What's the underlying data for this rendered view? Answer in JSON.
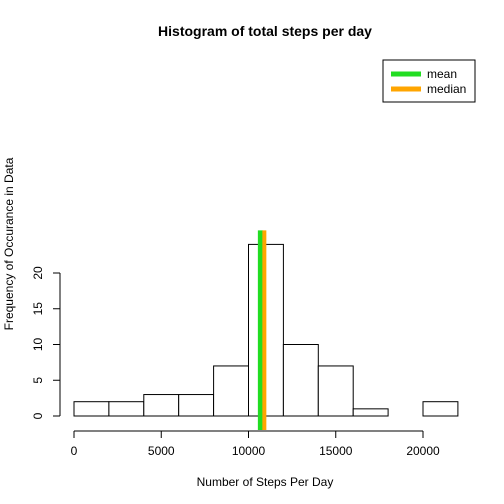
{
  "chart_data": {
    "type": "histogram",
    "title": "Histogram of total steps per day",
    "xlabel": "Number of Steps Per Day",
    "ylabel": "Frequency of Occurance in Data",
    "xlim": [
      0,
      22000
    ],
    "ylim": [
      0,
      24
    ],
    "xticks": [
      0,
      5000,
      10000,
      15000,
      20000
    ],
    "yticks": [
      0,
      5,
      10,
      15,
      20
    ],
    "bins": [
      {
        "start": 0,
        "end": 2000,
        "count": 2
      },
      {
        "start": 2000,
        "end": 4000,
        "count": 2
      },
      {
        "start": 4000,
        "end": 6000,
        "count": 3
      },
      {
        "start": 6000,
        "end": 8000,
        "count": 3
      },
      {
        "start": 8000,
        "end": 10000,
        "count": 7
      },
      {
        "start": 10000,
        "end": 12000,
        "count": 24
      },
      {
        "start": 12000,
        "end": 14000,
        "count": 10
      },
      {
        "start": 14000,
        "end": 16000,
        "count": 7
      },
      {
        "start": 16000,
        "end": 18000,
        "count": 1
      },
      {
        "start": 18000,
        "end": 20000,
        "count": 0
      },
      {
        "start": 20000,
        "end": 22000,
        "count": 2
      }
    ],
    "reference_lines": [
      {
        "name": "mean",
        "value": 10766,
        "color": "#22dd22"
      },
      {
        "name": "median",
        "value": 10765,
        "color": "#ffa500"
      }
    ],
    "legend": {
      "position": "top-right",
      "items": [
        {
          "label": "mean",
          "color": "#22dd22"
        },
        {
          "label": "median",
          "color": "#ffa500"
        }
      ]
    },
    "grid": false
  }
}
